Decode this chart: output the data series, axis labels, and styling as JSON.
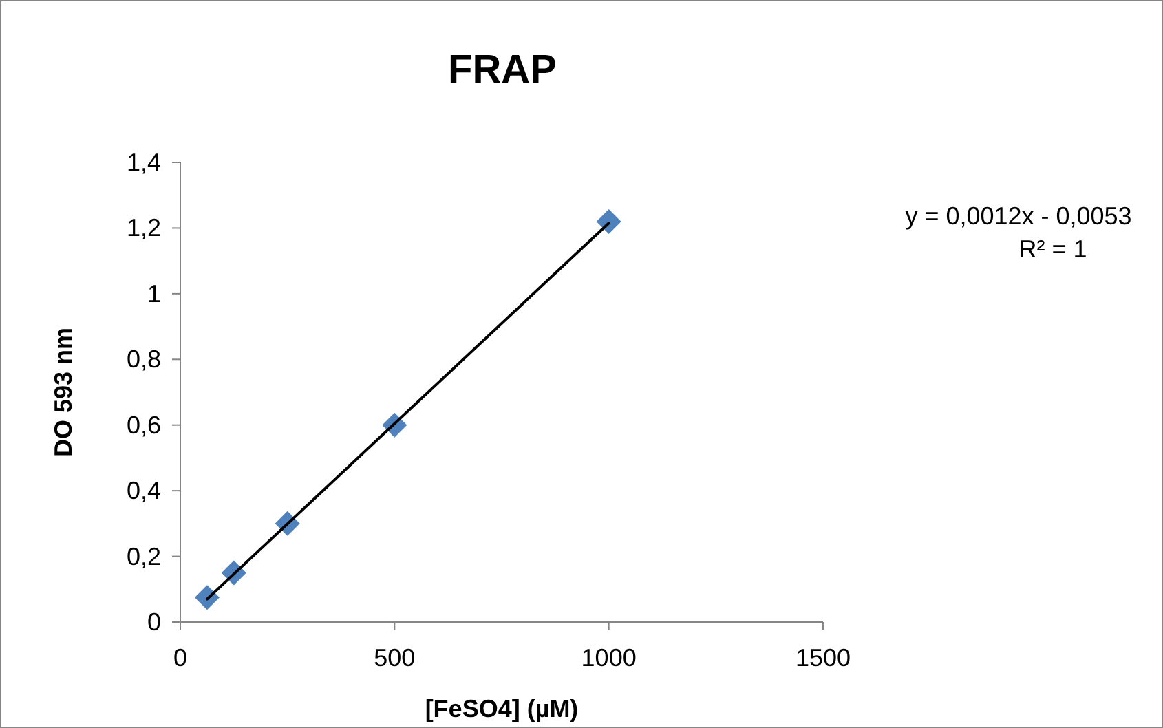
{
  "chart_data": {
    "type": "scatter",
    "title": "FRAP",
    "xlabel": "[FeSO4]  (µM)",
    "ylabel": "DO 593 nm",
    "series": [
      {
        "color": "#4f81bd",
        "marker": "diamond",
        "x": [
          62.5,
          125,
          250,
          500,
          1000
        ],
        "values": [
          0.075,
          0.15,
          0.3,
          0.6,
          1.22
        ]
      },
      {
        "type": "line",
        "color": "#000000",
        "marker": "none",
        "line_style": "solid",
        "x": [
          62.5,
          1000
        ],
        "values": [
          0.07,
          1.215
        ]
      }
    ],
    "xlim": [
      0,
      1500
    ],
    "xticks": [
      0,
      500,
      1000,
      1500
    ],
    "ylim": [
      0,
      1.4
    ],
    "yticks": [
      0,
      {
        "value": 0.2,
        "label": "0,2"
      },
      {
        "value": 0.4,
        "label": "0,4"
      },
      {
        "value": 0.6,
        "label": "0,6"
      },
      {
        "value": 0.8,
        "label": "0,8"
      },
      1,
      {
        "value": 1.2,
        "label": "1,2"
      },
      {
        "value": 1.4,
        "label": "1,4"
      }
    ],
    "grid": false,
    "annotations": [
      "y = 0,0012x - 0,0053",
      "R² = 1"
    ]
  }
}
